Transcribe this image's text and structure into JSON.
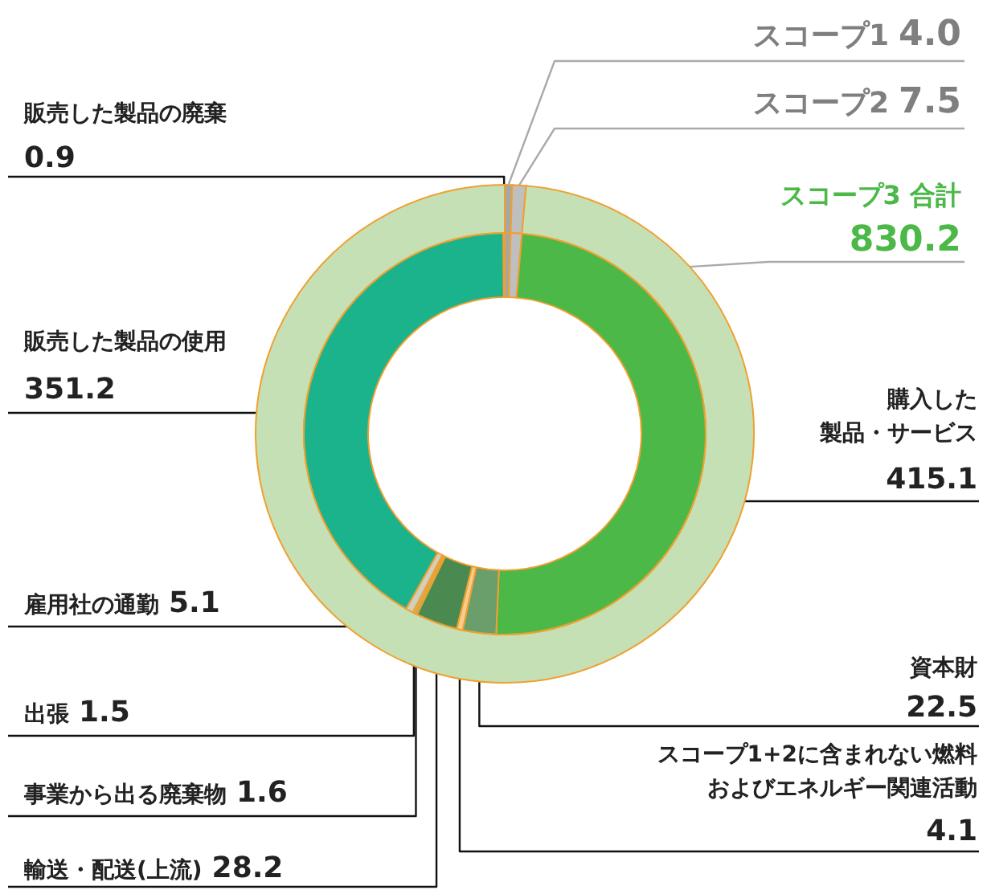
{
  "chart_data": [
    {
      "type": "donut",
      "categories": [
        "スコープ1",
        "スコープ2",
        "スコープ3 合計"
      ],
      "values": [
        4.0,
        7.5,
        830.2
      ],
      "colors": [
        "#a6a6a6",
        "#bfbfbf",
        "#c5e0b4"
      ],
      "value_labels": [
        "4.0",
        "7.5",
        "830.2"
      ]
    },
    {
      "type": "donut",
      "categories": [
        null,
        null,
        "購入した製品・サービス",
        "資本財",
        "スコープ1+2に含まれない燃料およびエネルギー関連活動",
        "輸送・配送(上流)",
        "事業から出る廃棄物",
        "出張",
        "雇用社の通勤",
        "販売した製品の使用",
        "販売した製品の廃棄"
      ],
      "values": [
        4.0,
        7.5,
        415.1,
        22.5,
        4.1,
        28.2,
        1.6,
        1.5,
        5.1,
        351.2,
        0.9
      ],
      "colors": [
        "#a6a6a6",
        "#bfbfbf",
        "#4cb848",
        "#6a9e6a",
        "#f8cb8f",
        "#4a8a50",
        "#8fb88a",
        "#a9c9a0",
        "#d0d0c0",
        "#1ab38c",
        "#6a7a6a"
      ],
      "value_labels": [
        null,
        null,
        "415.1",
        "22.5",
        "4.1",
        "28.2",
        "1.6",
        "1.5",
        "5.1",
        "351.2",
        "0.9"
      ]
    }
  ]
}
